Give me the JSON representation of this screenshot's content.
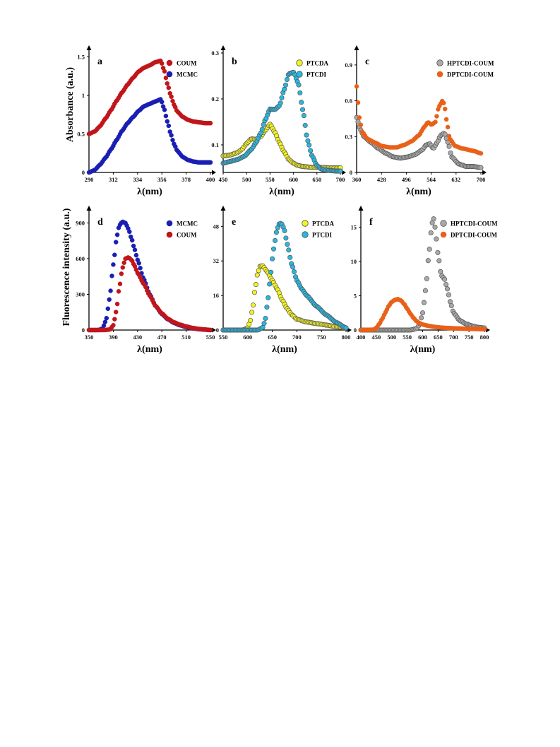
{
  "colors": {
    "COUM": "#c0161b",
    "MCMC": "#1a1fb3",
    "PTCDA": "#f4f41c",
    "PTCDI": "#29b6e0",
    "HPTCDI-COUM": "#a9a9a9",
    "DPTCDI-COUM": "#e96118"
  },
  "y_labels": {
    "top": "Absorbance (a.u.)",
    "bottom": "Fluorescence intensity (a.u.)"
  },
  "chart_data": [
    {
      "panel": "a",
      "type": "scatter",
      "xlabel": "λ(nm)",
      "xlim": [
        290,
        400
      ],
      "ylim": [
        0,
        1.55
      ],
      "xticks": [
        "290",
        "312",
        "334",
        "356",
        "378",
        "400"
      ],
      "yticks": [
        "0",
        "0.5",
        "1",
        "1.5"
      ],
      "legend": "top-right",
      "series": [
        {
          "name": "COUM",
          "color": "#c0161b",
          "marker": "filled",
          "x": [
            290,
            295,
            300,
            305,
            310,
            315,
            320,
            325,
            330,
            335,
            340,
            345,
            350,
            355,
            358,
            361,
            364,
            367,
            370,
            375,
            380,
            385,
            390,
            395,
            400
          ],
          "y": [
            0.5,
            0.53,
            0.6,
            0.7,
            0.81,
            0.93,
            1.04,
            1.14,
            1.23,
            1.31,
            1.36,
            1.39,
            1.43,
            1.45,
            1.33,
            1.15,
            1.0,
            0.88,
            0.79,
            0.72,
            0.68,
            0.66,
            0.65,
            0.64,
            0.64
          ]
        },
        {
          "name": "MCMC",
          "color": "#1a1fb3",
          "marker": "filled",
          "x": [
            290,
            295,
            300,
            305,
            310,
            315,
            320,
            325,
            330,
            335,
            340,
            345,
            350,
            355,
            358,
            361,
            364,
            367,
            370,
            375,
            380,
            385,
            390,
            395,
            400
          ],
          "y": [
            0.0,
            0.03,
            0.1,
            0.19,
            0.3,
            0.42,
            0.54,
            0.64,
            0.72,
            0.8,
            0.86,
            0.89,
            0.92,
            0.95,
            0.83,
            0.66,
            0.5,
            0.37,
            0.28,
            0.2,
            0.16,
            0.14,
            0.13,
            0.13,
            0.13
          ]
        }
      ]
    },
    {
      "panel": "b",
      "type": "scatter",
      "xlabel": "λ(nm)",
      "xlim": [
        450,
        700
      ],
      "ylim": [
        0.04,
        0.3
      ],
      "xticks": [
        "450",
        "500",
        "550",
        "600",
        "650",
        "700"
      ],
      "yticks": [
        "0.1",
        "0.2",
        "0.3"
      ],
      "legend": "top-right",
      "series": [
        {
          "name": "PTCDA",
          "color": "#f4f41c",
          "marker": "open",
          "x": [
            450,
            465,
            480,
            490,
            500,
            510,
            520,
            530,
            540,
            550,
            560,
            570,
            580,
            590,
            600,
            610,
            620,
            630,
            640,
            660,
            680,
            700
          ],
          "y": [
            0.076,
            0.078,
            0.083,
            0.09,
            0.103,
            0.113,
            0.112,
            0.118,
            0.132,
            0.145,
            0.128,
            0.105,
            0.085,
            0.068,
            0.06,
            0.055,
            0.053,
            0.052,
            0.051,
            0.051,
            0.05,
            0.05
          ]
        },
        {
          "name": "PTCDI",
          "color": "#29b6e0",
          "marker": "open",
          "x": [
            450,
            465,
            480,
            495,
            510,
            520,
            530,
            540,
            550,
            560,
            570,
            580,
            590,
            600,
            610,
            620,
            630,
            640,
            650,
            660,
            670,
            680,
            690,
            700
          ],
          "y": [
            0.06,
            0.064,
            0.068,
            0.075,
            0.09,
            0.105,
            0.125,
            0.155,
            0.178,
            0.177,
            0.185,
            0.22,
            0.255,
            0.258,
            0.235,
            0.175,
            0.11,
            0.075,
            0.055,
            0.047,
            0.045,
            0.044,
            0.043,
            0.043
          ]
        }
      ]
    },
    {
      "panel": "c",
      "type": "scatter",
      "xlabel": "λ(nm)",
      "xlim": [
        360,
        700
      ],
      "ylim": [
        0,
        1.0
      ],
      "xticks": [
        "360",
        "428",
        "496",
        "564",
        "632",
        "700"
      ],
      "yticks": [
        "0",
        "0.3",
        "0.6",
        "0.9"
      ],
      "legend": "top-right",
      "series": [
        {
          "name": "HPTCDI-COUM",
          "color": "#a9a9a9",
          "marker": "open",
          "x": [
            360,
            370,
            380,
            400,
            420,
            440,
            460,
            480,
            500,
            520,
            540,
            550,
            560,
            570,
            580,
            590,
            600,
            610,
            620,
            640,
            660,
            680,
            700
          ],
          "y": [
            0.46,
            0.36,
            0.3,
            0.25,
            0.2,
            0.16,
            0.13,
            0.12,
            0.13,
            0.15,
            0.19,
            0.23,
            0.24,
            0.2,
            0.25,
            0.31,
            0.33,
            0.25,
            0.13,
            0.07,
            0.05,
            0.05,
            0.04
          ]
        },
        {
          "name": "DPTCDI-COUM",
          "color": "#e96118",
          "marker": "filled",
          "x": [
            360,
            364,
            368,
            375,
            390,
            410,
            430,
            450,
            470,
            490,
            510,
            530,
            545,
            555,
            565,
            575,
            585,
            595,
            600,
            605,
            615,
            630,
            650,
            680,
            700
          ],
          "y": [
            0.72,
            0.58,
            0.45,
            0.34,
            0.28,
            0.25,
            0.22,
            0.21,
            0.21,
            0.23,
            0.26,
            0.31,
            0.38,
            0.42,
            0.4,
            0.42,
            0.55,
            0.6,
            0.57,
            0.45,
            0.28,
            0.22,
            0.2,
            0.18,
            0.16
          ]
        }
      ]
    },
    {
      "panel": "d",
      "type": "scatter",
      "xlabel": "λ(nm)",
      "xlim": [
        350,
        550
      ],
      "ylim": [
        0,
        980
      ],
      "xticks": [
        "350",
        "390",
        "430",
        "470",
        "510",
        "550"
      ],
      "yticks": [
        "0",
        "300",
        "600",
        "900"
      ],
      "legend": "top-right",
      "series": [
        {
          "name": "MCMC",
          "color": "#1a1fb3",
          "marker": "filled",
          "x": [
            350,
            365,
            372,
            378,
            384,
            390,
            396,
            400,
            405,
            410,
            415,
            420,
            425,
            430,
            440,
            450,
            460,
            470,
            480,
            490,
            500,
            510,
            520,
            530,
            540,
            550
          ],
          "y": [
            0,
            0,
            10,
            80,
            270,
            550,
            790,
            880,
            910,
            900,
            850,
            770,
            680,
            590,
            430,
            300,
            200,
            135,
            90,
            60,
            40,
            25,
            15,
            8,
            3,
            0
          ]
        },
        {
          "name": "COUM",
          "color": "#c0161b",
          "marker": "filled",
          "x": [
            350,
            375,
            385,
            390,
            395,
            400,
            405,
            410,
            415,
            420,
            425,
            430,
            440,
            450,
            460,
            470,
            480,
            490,
            500,
            510,
            520,
            530,
            540,
            550
          ],
          "y": [
            0,
            0,
            5,
            40,
            160,
            360,
            520,
            600,
            610,
            590,
            540,
            480,
            390,
            290,
            200,
            140,
            95,
            65,
            45,
            30,
            18,
            10,
            5,
            0
          ]
        }
      ]
    },
    {
      "panel": "e",
      "type": "scatter",
      "xlabel": "λ(nm)",
      "xlim": [
        550,
        800
      ],
      "ylim": [
        0,
        54
      ],
      "xticks": [
        "550",
        "600",
        "650",
        "700",
        "750",
        "800"
      ],
      "yticks": [
        "0",
        "16",
        "32",
        "48"
      ],
      "legend": "top-right",
      "series": [
        {
          "name": "PTCDA",
          "color": "#f4f41c",
          "marker": "open",
          "x": [
            550,
            590,
            600,
            605,
            610,
            615,
            620,
            625,
            630,
            640,
            650,
            660,
            670,
            680,
            690,
            700,
            720,
            740,
            760,
            780,
            800
          ],
          "y": [
            0,
            0,
            1,
            4,
            10,
            19,
            26,
            29.5,
            29.8,
            27,
            23,
            19,
            14,
            10,
            7,
            5,
            3.7,
            3,
            2.3,
            1.5,
            1
          ]
        },
        {
          "name": "PTCDI",
          "color": "#29b6e0",
          "marker": "open",
          "x": [
            550,
            620,
            630,
            635,
            640,
            645,
            650,
            655,
            660,
            665,
            670,
            675,
            680,
            690,
            700,
            710,
            720,
            740,
            760,
            780,
            800
          ],
          "y": [
            0,
            0,
            1,
            4,
            12,
            22,
            33,
            41,
            47,
            49.5,
            49,
            46,
            40,
            30,
            23,
            19,
            16,
            11,
            7,
            3.5,
            1
          ]
        }
      ]
    },
    {
      "panel": "f",
      "type": "scatter",
      "xlabel": "λ(nm)",
      "xlim": [
        400,
        800
      ],
      "ylim": [
        0,
        17
      ],
      "xticks": [
        "400",
        "450",
        "500",
        "550",
        "600",
        "650",
        "700",
        "750",
        "800"
      ],
      "yticks": [
        "0",
        "5",
        "10",
        "15"
      ],
      "legend": "top-right",
      "series": [
        {
          "name": "HPTCDI-COUM",
          "color": "#a9a9a9",
          "marker": "open",
          "x": [
            400,
            560,
            580,
            590,
            600,
            610,
            620,
            630,
            635,
            640,
            650,
            660,
            670,
            680,
            690,
            700,
            720,
            740,
            760,
            780,
            800
          ],
          "y": [
            0,
            0,
            0.2,
            0.8,
            2.5,
            6,
            11,
            15.5,
            16.3,
            15,
            11,
            8,
            7.5,
            6,
            4,
            2.5,
            1.4,
            0.9,
            0.6,
            0.4,
            0.3
          ]
        },
        {
          "name": "DPTCDI-COUM",
          "color": "#e96118",
          "marker": "filled",
          "x": [
            400,
            440,
            450,
            460,
            470,
            480,
            490,
            500,
            510,
            520,
            530,
            540,
            550,
            560,
            570,
            580,
            590,
            600,
            620,
            640,
            660,
            680,
            700,
            750,
            800
          ],
          "y": [
            0,
            0.05,
            0.3,
            0.9,
            1.7,
            2.6,
            3.5,
            4.1,
            4.4,
            4.5,
            4.3,
            3.8,
            3.1,
            2.4,
            1.8,
            1.3,
            1.0,
            0.8,
            0.6,
            0.45,
            0.35,
            0.3,
            0.25,
            0.18,
            0.12
          ]
        }
      ]
    }
  ]
}
